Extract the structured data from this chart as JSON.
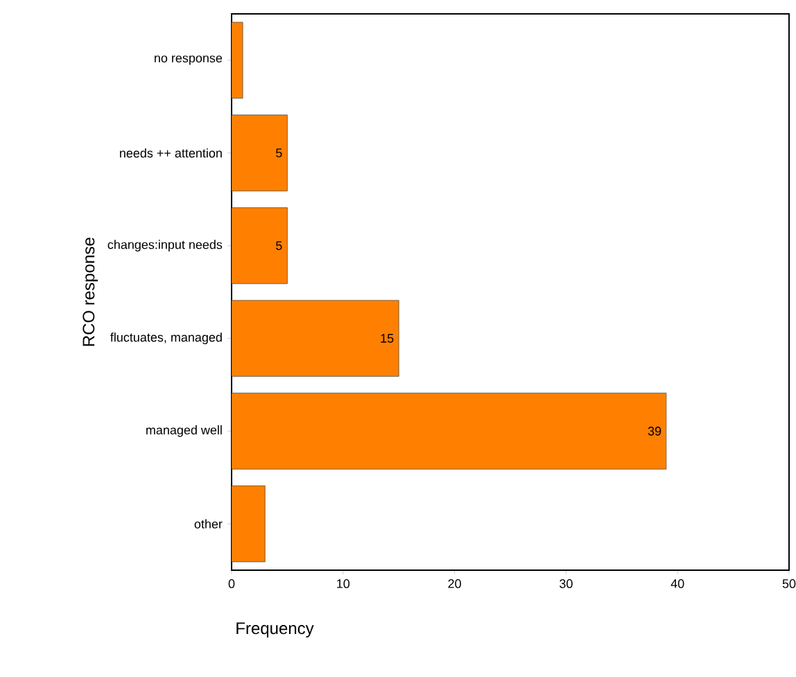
{
  "chart_data": {
    "type": "bar",
    "orientation": "horizontal",
    "xlabel": "Frequency",
    "ylabel": "RCO response",
    "categories": [
      "no response",
      "needs ++ attention",
      "changes:input needs",
      "fluctuates, managed",
      "managed well",
      "other"
    ],
    "values": [
      1,
      5,
      5,
      15,
      39,
      3
    ],
    "value_labels": [
      null,
      "5",
      "5",
      "15",
      "39",
      null
    ],
    "color": "#ff8000",
    "xlim": [
      0,
      50
    ],
    "xticks": [
      0,
      10,
      20,
      30,
      40,
      50
    ],
    "grid": false
  }
}
